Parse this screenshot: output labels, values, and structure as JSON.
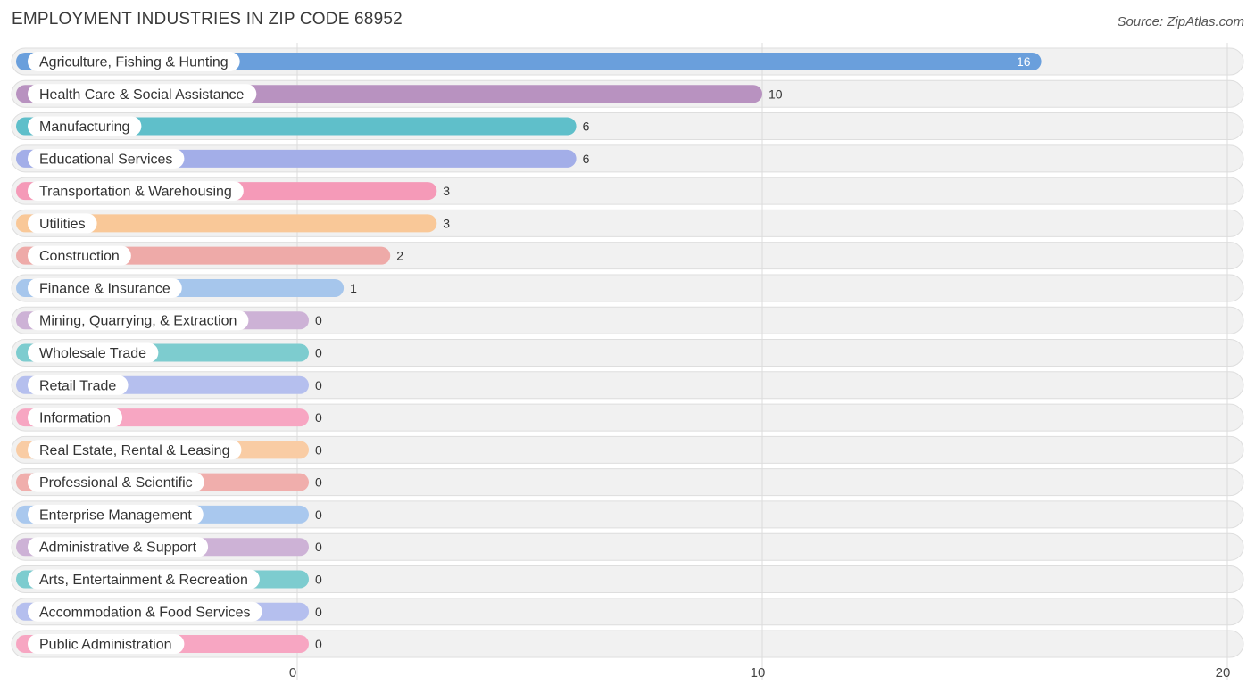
{
  "header": {
    "title": "EMPLOYMENT INDUSTRIES IN ZIP CODE 68952",
    "source": "Source: ZipAtlas.com"
  },
  "chart_data": {
    "type": "bar",
    "orientation": "horizontal",
    "title": "EMPLOYMENT INDUSTRIES IN ZIP CODE 68952",
    "xlabel": "",
    "ylabel": "",
    "xlim": [
      0,
      20
    ],
    "ticks": [
      0,
      10,
      20
    ],
    "grid": true,
    "categories": [
      "Agriculture, Fishing & Hunting",
      "Health Care & Social Assistance",
      "Manufacturing",
      "Educational Services",
      "Transportation & Warehousing",
      "Utilities",
      "Construction",
      "Finance & Insurance",
      "Mining, Quarrying, & Extraction",
      "Wholesale Trade",
      "Retail Trade",
      "Information",
      "Real Estate, Rental & Leasing",
      "Professional & Scientific",
      "Enterprise Management",
      "Administrative & Support",
      "Arts, Entertainment & Recreation",
      "Accommodation & Food Services",
      "Public Administration"
    ],
    "values": [
      16,
      10,
      6,
      6,
      3,
      3,
      2,
      1,
      0,
      0,
      0,
      0,
      0,
      0,
      0,
      0,
      0,
      0,
      0
    ],
    "colors": [
      "#6a9fdc",
      "#b892c0",
      "#5fbfca",
      "#a3aee8",
      "#f59ab8",
      "#f9c898",
      "#eeaaa8",
      "#a6c6ec",
      "#cdb2d6",
      "#7dcccf",
      "#b5bfee",
      "#f7a6c2",
      "#f9cca4",
      "#f0aeac",
      "#a9c8ee",
      "#cdb2d6",
      "#7dcccf",
      "#b5bfee",
      "#f7a6c2"
    ]
  }
}
